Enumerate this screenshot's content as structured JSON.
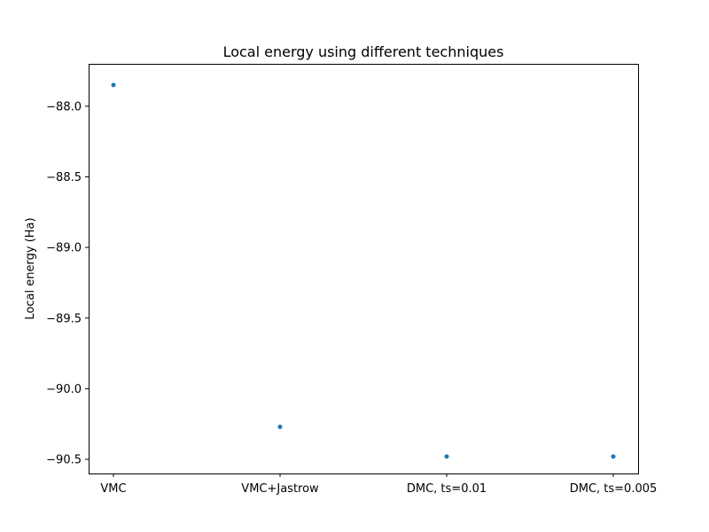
{
  "chart_data": {
    "type": "scatter",
    "title": "Local energy using different techniques",
    "xlabel": "",
    "ylabel": "Local energy (Ha)",
    "categories": [
      "VMC",
      "VMC+Jastrow",
      "DMC, ts=0.01",
      "DMC, ts=0.005"
    ],
    "series": [
      {
        "values": [
          -87.85,
          -90.27,
          -90.48,
          -90.48
        ]
      }
    ],
    "ylim": [
      -90.6,
      -87.7
    ],
    "yticks": [
      -88.0,
      -88.5,
      -89.0,
      -89.5,
      -90.0,
      -90.5
    ],
    "ytick_labels": [
      "−88.0",
      "−88.5",
      "−89.0",
      "−89.5",
      "−90.0",
      "−90.5"
    ],
    "grid": false,
    "marker_color": "#1f77b4"
  }
}
